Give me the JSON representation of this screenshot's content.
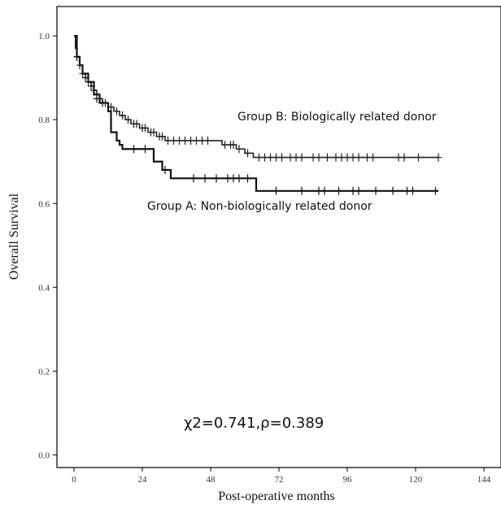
{
  "chart_data": {
    "type": "line",
    "title": "",
    "xlabel": "Post-operative months",
    "ylabel": "Overall Survival",
    "xlim": [
      -6,
      150
    ],
    "ylim": [
      -0.03,
      1.07
    ],
    "xticks": [
      0,
      24,
      48,
      72,
      96,
      120,
      144
    ],
    "yticks": [
      0.0,
      0.2,
      0.4,
      0.6,
      0.8,
      1.0
    ],
    "ytick_labels": [
      "0.0",
      "0.2",
      "0.4",
      "0.6",
      "0.8",
      "1.0"
    ],
    "grid": false,
    "legend": "none",
    "annotations": {
      "group_b_label": "Group B: Biologically related donor",
      "group_a_label": "Group A: Non-biologically related donor",
      "statistic": "χ2=0.741,ρ=0.389"
    },
    "series": [
      {
        "name": "Group B: Biologically related donor",
        "color": "#222222",
        "dashed_from_x": 72,
        "steps": [
          [
            0,
            1.0
          ],
          [
            0.5,
            0.97
          ],
          [
            1,
            0.95
          ],
          [
            2,
            0.93
          ],
          [
            3,
            0.91
          ],
          [
            4,
            0.9
          ],
          [
            5,
            0.89
          ],
          [
            6,
            0.88
          ],
          [
            7,
            0.87
          ],
          [
            8,
            0.86
          ],
          [
            9,
            0.85
          ],
          [
            10,
            0.84
          ],
          [
            12,
            0.83
          ],
          [
            14,
            0.82
          ],
          [
            16,
            0.81
          ],
          [
            18,
            0.8
          ],
          [
            20,
            0.79
          ],
          [
            23,
            0.78
          ],
          [
            26,
            0.77
          ],
          [
            29,
            0.76
          ],
          [
            32,
            0.75
          ],
          [
            52,
            0.74
          ],
          [
            57,
            0.73
          ],
          [
            60,
            0.72
          ],
          [
            63,
            0.71
          ],
          [
            128,
            0.71
          ]
        ],
        "censors": [
          [
            1,
            0.95
          ],
          [
            2,
            0.93
          ],
          [
            3,
            0.91
          ],
          [
            5,
            0.89
          ],
          [
            7,
            0.87
          ],
          [
            9,
            0.85
          ],
          [
            11,
            0.84
          ],
          [
            13,
            0.83
          ],
          [
            15,
            0.82
          ],
          [
            17,
            0.81
          ],
          [
            19,
            0.8
          ],
          [
            21,
            0.79
          ],
          [
            22,
            0.79
          ],
          [
            24,
            0.78
          ],
          [
            25,
            0.78
          ],
          [
            27,
            0.77
          ],
          [
            28,
            0.77
          ],
          [
            30,
            0.76
          ],
          [
            31,
            0.76
          ],
          [
            33,
            0.75
          ],
          [
            35,
            0.75
          ],
          [
            37,
            0.75
          ],
          [
            39,
            0.75
          ],
          [
            41,
            0.75
          ],
          [
            43,
            0.75
          ],
          [
            45,
            0.75
          ],
          [
            47,
            0.75
          ],
          [
            53,
            0.74
          ],
          [
            55,
            0.74
          ],
          [
            56,
            0.74
          ],
          [
            58,
            0.73
          ],
          [
            61,
            0.72
          ],
          [
            65,
            0.71
          ],
          [
            67,
            0.71
          ],
          [
            69,
            0.71
          ],
          [
            71,
            0.71
          ],
          [
            73,
            0.71
          ],
          [
            76,
            0.71
          ],
          [
            78,
            0.71
          ],
          [
            80,
            0.71
          ],
          [
            84,
            0.71
          ],
          [
            86,
            0.71
          ],
          [
            89,
            0.71
          ],
          [
            92,
            0.71
          ],
          [
            94,
            0.71
          ],
          [
            96,
            0.71
          ],
          [
            98,
            0.71
          ],
          [
            100,
            0.71
          ],
          [
            103,
            0.71
          ],
          [
            105,
            0.71
          ],
          [
            114,
            0.71
          ],
          [
            116,
            0.71
          ],
          [
            121,
            0.71
          ],
          [
            128,
            0.71
          ]
        ]
      },
      {
        "name": "Group A: Non-biologically related donor",
        "color": "#111111",
        "dashed_from_x": null,
        "steps": [
          [
            0,
            1.0
          ],
          [
            1,
            0.95
          ],
          [
            2,
            0.93
          ],
          [
            3,
            0.91
          ],
          [
            5,
            0.89
          ],
          [
            7,
            0.86
          ],
          [
            9,
            0.84
          ],
          [
            12,
            0.82
          ],
          [
            13,
            0.77
          ],
          [
            15,
            0.75
          ],
          [
            16,
            0.74
          ],
          [
            17,
            0.73
          ],
          [
            28,
            0.7
          ],
          [
            31,
            0.68
          ],
          [
            34,
            0.66
          ],
          [
            64,
            0.63
          ],
          [
            128,
            0.63
          ]
        ],
        "censors": [
          [
            1,
            0.95
          ],
          [
            4,
            0.9
          ],
          [
            6,
            0.88
          ],
          [
            8,
            0.85
          ],
          [
            10,
            0.84
          ],
          [
            21,
            0.73
          ],
          [
            25,
            0.73
          ],
          [
            32,
            0.68
          ],
          [
            42,
            0.66
          ],
          [
            46,
            0.66
          ],
          [
            50,
            0.66
          ],
          [
            54,
            0.66
          ],
          [
            56,
            0.66
          ],
          [
            58,
            0.66
          ],
          [
            61,
            0.66
          ],
          [
            71,
            0.63
          ],
          [
            80,
            0.63
          ],
          [
            86,
            0.63
          ],
          [
            88,
            0.63
          ],
          [
            93,
            0.63
          ],
          [
            98,
            0.63
          ],
          [
            100,
            0.63
          ],
          [
            106,
            0.63
          ],
          [
            112,
            0.63
          ],
          [
            117,
            0.63
          ],
          [
            119,
            0.63
          ],
          [
            127,
            0.63
          ]
        ]
      }
    ]
  }
}
